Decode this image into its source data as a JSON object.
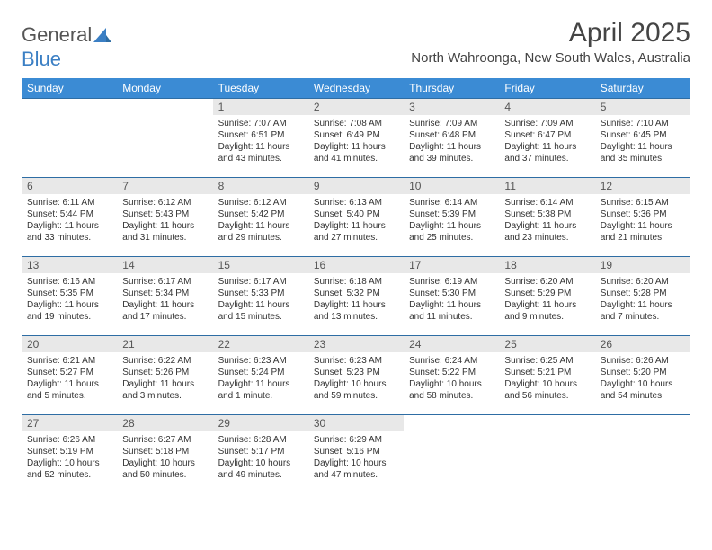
{
  "brand": {
    "name_part1": "General",
    "name_part2": "Blue"
  },
  "title": "April 2025",
  "location": "North Wahroonga, New South Wales, Australia",
  "colors": {
    "header_bg": "#3b8bd4",
    "header_text": "#ffffff",
    "row_border": "#2e6da4",
    "daynum_bg": "#e8e8e8",
    "body_text": "#333333",
    "logo_accent": "#3b7fc4"
  },
  "weekdays": [
    "Sunday",
    "Monday",
    "Tuesday",
    "Wednesday",
    "Thursday",
    "Friday",
    "Saturday"
  ],
  "weeks": [
    [
      null,
      null,
      {
        "n": "1",
        "sr": "Sunrise: 7:07 AM",
        "ss": "Sunset: 6:51 PM",
        "dl": "Daylight: 11 hours and 43 minutes."
      },
      {
        "n": "2",
        "sr": "Sunrise: 7:08 AM",
        "ss": "Sunset: 6:49 PM",
        "dl": "Daylight: 11 hours and 41 minutes."
      },
      {
        "n": "3",
        "sr": "Sunrise: 7:09 AM",
        "ss": "Sunset: 6:48 PM",
        "dl": "Daylight: 11 hours and 39 minutes."
      },
      {
        "n": "4",
        "sr": "Sunrise: 7:09 AM",
        "ss": "Sunset: 6:47 PM",
        "dl": "Daylight: 11 hours and 37 minutes."
      },
      {
        "n": "5",
        "sr": "Sunrise: 7:10 AM",
        "ss": "Sunset: 6:45 PM",
        "dl": "Daylight: 11 hours and 35 minutes."
      }
    ],
    [
      {
        "n": "6",
        "sr": "Sunrise: 6:11 AM",
        "ss": "Sunset: 5:44 PM",
        "dl": "Daylight: 11 hours and 33 minutes."
      },
      {
        "n": "7",
        "sr": "Sunrise: 6:12 AM",
        "ss": "Sunset: 5:43 PM",
        "dl": "Daylight: 11 hours and 31 minutes."
      },
      {
        "n": "8",
        "sr": "Sunrise: 6:12 AM",
        "ss": "Sunset: 5:42 PM",
        "dl": "Daylight: 11 hours and 29 minutes."
      },
      {
        "n": "9",
        "sr": "Sunrise: 6:13 AM",
        "ss": "Sunset: 5:40 PM",
        "dl": "Daylight: 11 hours and 27 minutes."
      },
      {
        "n": "10",
        "sr": "Sunrise: 6:14 AM",
        "ss": "Sunset: 5:39 PM",
        "dl": "Daylight: 11 hours and 25 minutes."
      },
      {
        "n": "11",
        "sr": "Sunrise: 6:14 AM",
        "ss": "Sunset: 5:38 PM",
        "dl": "Daylight: 11 hours and 23 minutes."
      },
      {
        "n": "12",
        "sr": "Sunrise: 6:15 AM",
        "ss": "Sunset: 5:36 PM",
        "dl": "Daylight: 11 hours and 21 minutes."
      }
    ],
    [
      {
        "n": "13",
        "sr": "Sunrise: 6:16 AM",
        "ss": "Sunset: 5:35 PM",
        "dl": "Daylight: 11 hours and 19 minutes."
      },
      {
        "n": "14",
        "sr": "Sunrise: 6:17 AM",
        "ss": "Sunset: 5:34 PM",
        "dl": "Daylight: 11 hours and 17 minutes."
      },
      {
        "n": "15",
        "sr": "Sunrise: 6:17 AM",
        "ss": "Sunset: 5:33 PM",
        "dl": "Daylight: 11 hours and 15 minutes."
      },
      {
        "n": "16",
        "sr": "Sunrise: 6:18 AM",
        "ss": "Sunset: 5:32 PM",
        "dl": "Daylight: 11 hours and 13 minutes."
      },
      {
        "n": "17",
        "sr": "Sunrise: 6:19 AM",
        "ss": "Sunset: 5:30 PM",
        "dl": "Daylight: 11 hours and 11 minutes."
      },
      {
        "n": "18",
        "sr": "Sunrise: 6:20 AM",
        "ss": "Sunset: 5:29 PM",
        "dl": "Daylight: 11 hours and 9 minutes."
      },
      {
        "n": "19",
        "sr": "Sunrise: 6:20 AM",
        "ss": "Sunset: 5:28 PM",
        "dl": "Daylight: 11 hours and 7 minutes."
      }
    ],
    [
      {
        "n": "20",
        "sr": "Sunrise: 6:21 AM",
        "ss": "Sunset: 5:27 PM",
        "dl": "Daylight: 11 hours and 5 minutes."
      },
      {
        "n": "21",
        "sr": "Sunrise: 6:22 AM",
        "ss": "Sunset: 5:26 PM",
        "dl": "Daylight: 11 hours and 3 minutes."
      },
      {
        "n": "22",
        "sr": "Sunrise: 6:23 AM",
        "ss": "Sunset: 5:24 PM",
        "dl": "Daylight: 11 hours and 1 minute."
      },
      {
        "n": "23",
        "sr": "Sunrise: 6:23 AM",
        "ss": "Sunset: 5:23 PM",
        "dl": "Daylight: 10 hours and 59 minutes."
      },
      {
        "n": "24",
        "sr": "Sunrise: 6:24 AM",
        "ss": "Sunset: 5:22 PM",
        "dl": "Daylight: 10 hours and 58 minutes."
      },
      {
        "n": "25",
        "sr": "Sunrise: 6:25 AM",
        "ss": "Sunset: 5:21 PM",
        "dl": "Daylight: 10 hours and 56 minutes."
      },
      {
        "n": "26",
        "sr": "Sunrise: 6:26 AM",
        "ss": "Sunset: 5:20 PM",
        "dl": "Daylight: 10 hours and 54 minutes."
      }
    ],
    [
      {
        "n": "27",
        "sr": "Sunrise: 6:26 AM",
        "ss": "Sunset: 5:19 PM",
        "dl": "Daylight: 10 hours and 52 minutes."
      },
      {
        "n": "28",
        "sr": "Sunrise: 6:27 AM",
        "ss": "Sunset: 5:18 PM",
        "dl": "Daylight: 10 hours and 50 minutes."
      },
      {
        "n": "29",
        "sr": "Sunrise: 6:28 AM",
        "ss": "Sunset: 5:17 PM",
        "dl": "Daylight: 10 hours and 49 minutes."
      },
      {
        "n": "30",
        "sr": "Sunrise: 6:29 AM",
        "ss": "Sunset: 5:16 PM",
        "dl": "Daylight: 10 hours and 47 minutes."
      },
      null,
      null,
      null
    ]
  ]
}
